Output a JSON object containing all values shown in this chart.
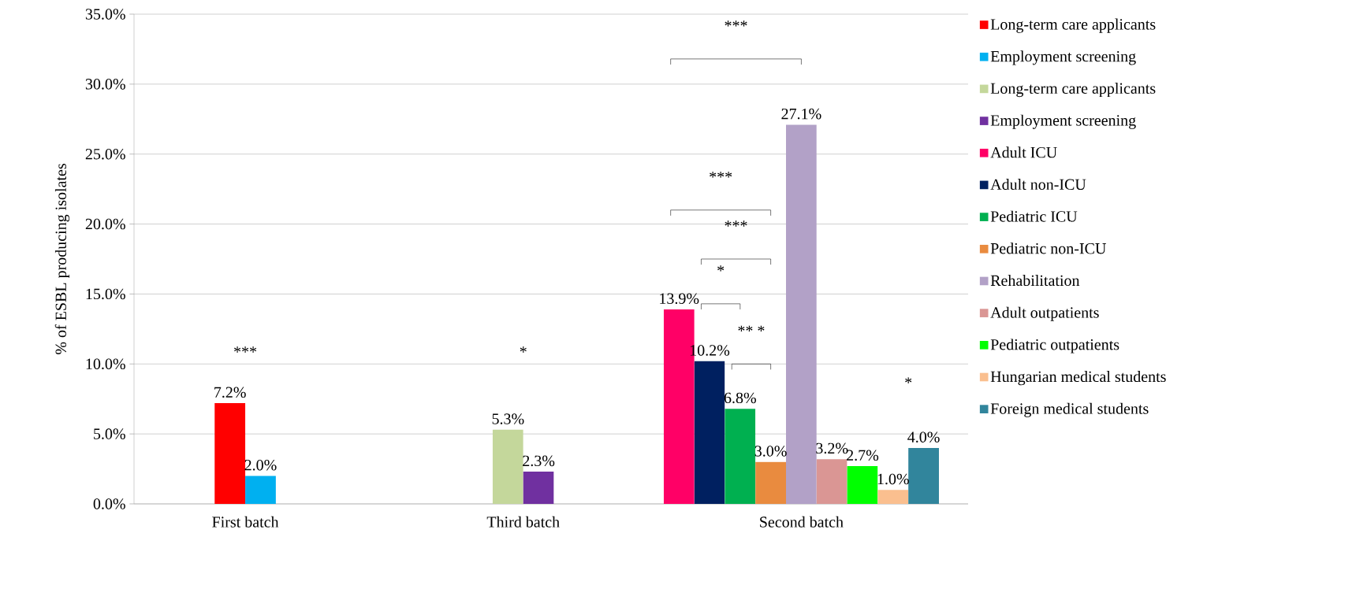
{
  "chart_data": {
    "type": "bar",
    "ylabel": "% of ESBL producing isolates",
    "categories": [
      "First batch",
      "Third batch",
      "Second batch"
    ],
    "series": [
      {
        "name": "Long-term care applicants",
        "color": "#ff0000",
        "values": [
          7.2,
          null,
          null
        ],
        "value_labels": [
          "7.2%",
          null,
          null
        ]
      },
      {
        "name": "Employment screening",
        "color": "#00b0f0",
        "values": [
          2.0,
          null,
          null
        ],
        "value_labels": [
          "2.0%",
          null,
          null
        ]
      },
      {
        "name": "Long-term care applicants",
        "color": "#c4d79b",
        "values": [
          null,
          5.3,
          null
        ],
        "value_labels": [
          null,
          "5.3%",
          null
        ]
      },
      {
        "name": "Employment screening",
        "color": "#7030a0",
        "values": [
          null,
          2.3,
          null
        ],
        "value_labels": [
          null,
          "2.3%",
          null
        ]
      },
      {
        "name": "Adult ICU",
        "color": "#ff0066",
        "values": [
          null,
          null,
          13.9
        ],
        "value_labels": [
          null,
          null,
          "13.9%"
        ]
      },
      {
        "name": "Adult non-ICU",
        "color": "#002060",
        "values": [
          null,
          null,
          10.2
        ],
        "value_labels": [
          null,
          null,
          "10.2%"
        ]
      },
      {
        "name": "Pediatric ICU",
        "color": "#00b050",
        "values": [
          null,
          null,
          6.8
        ],
        "value_labels": [
          null,
          null,
          "6.8%"
        ]
      },
      {
        "name": "Pediatric non-ICU",
        "color": "#e98b3f",
        "values": [
          null,
          null,
          3.0
        ],
        "value_labels": [
          null,
          null,
          "3.0%"
        ]
      },
      {
        "name": "Rehabilitation",
        "color": "#b2a1c7",
        "values": [
          null,
          null,
          27.1
        ],
        "value_labels": [
          null,
          null,
          "27.1%"
        ]
      },
      {
        "name": "Adult outpatients",
        "color": "#da9694",
        "values": [
          null,
          null,
          3.2
        ],
        "value_labels": [
          null,
          null,
          "3.2%"
        ]
      },
      {
        "name": "Pediatric outpatients",
        "color": "#00ff00",
        "values": [
          null,
          null,
          2.7
        ],
        "value_labels": [
          null,
          null,
          "2.7%"
        ]
      },
      {
        "name": "Hungarian medical students",
        "color": "#fabf8f",
        "values": [
          null,
          null,
          1.0
        ],
        "value_labels": [
          null,
          null,
          "1.0%"
        ]
      },
      {
        "name": "Foreign medical students",
        "color": "#31859c",
        "values": [
          null,
          null,
          4.0
        ],
        "value_labels": [
          null,
          null,
          "4.0%"
        ]
      }
    ],
    "ylim": [
      0,
      35
    ],
    "yticks": [
      {
        "value": 0,
        "label": "0.0%"
      },
      {
        "value": 5,
        "label": "5.0%"
      },
      {
        "value": 10,
        "label": "10.0%"
      },
      {
        "value": 15,
        "label": "15.0%"
      },
      {
        "value": 20,
        "label": "20.0%"
      },
      {
        "value": 25,
        "label": "25.0%"
      },
      {
        "value": 30,
        "label": "30.0%"
      },
      {
        "value": 35,
        "label": "35.0%"
      }
    ],
    "grid": "y",
    "legend": "right",
    "annotations": [
      "***",
      "*",
      "***",
      "***",
      "***",
      "*",
      "** *",
      "*"
    ]
  }
}
